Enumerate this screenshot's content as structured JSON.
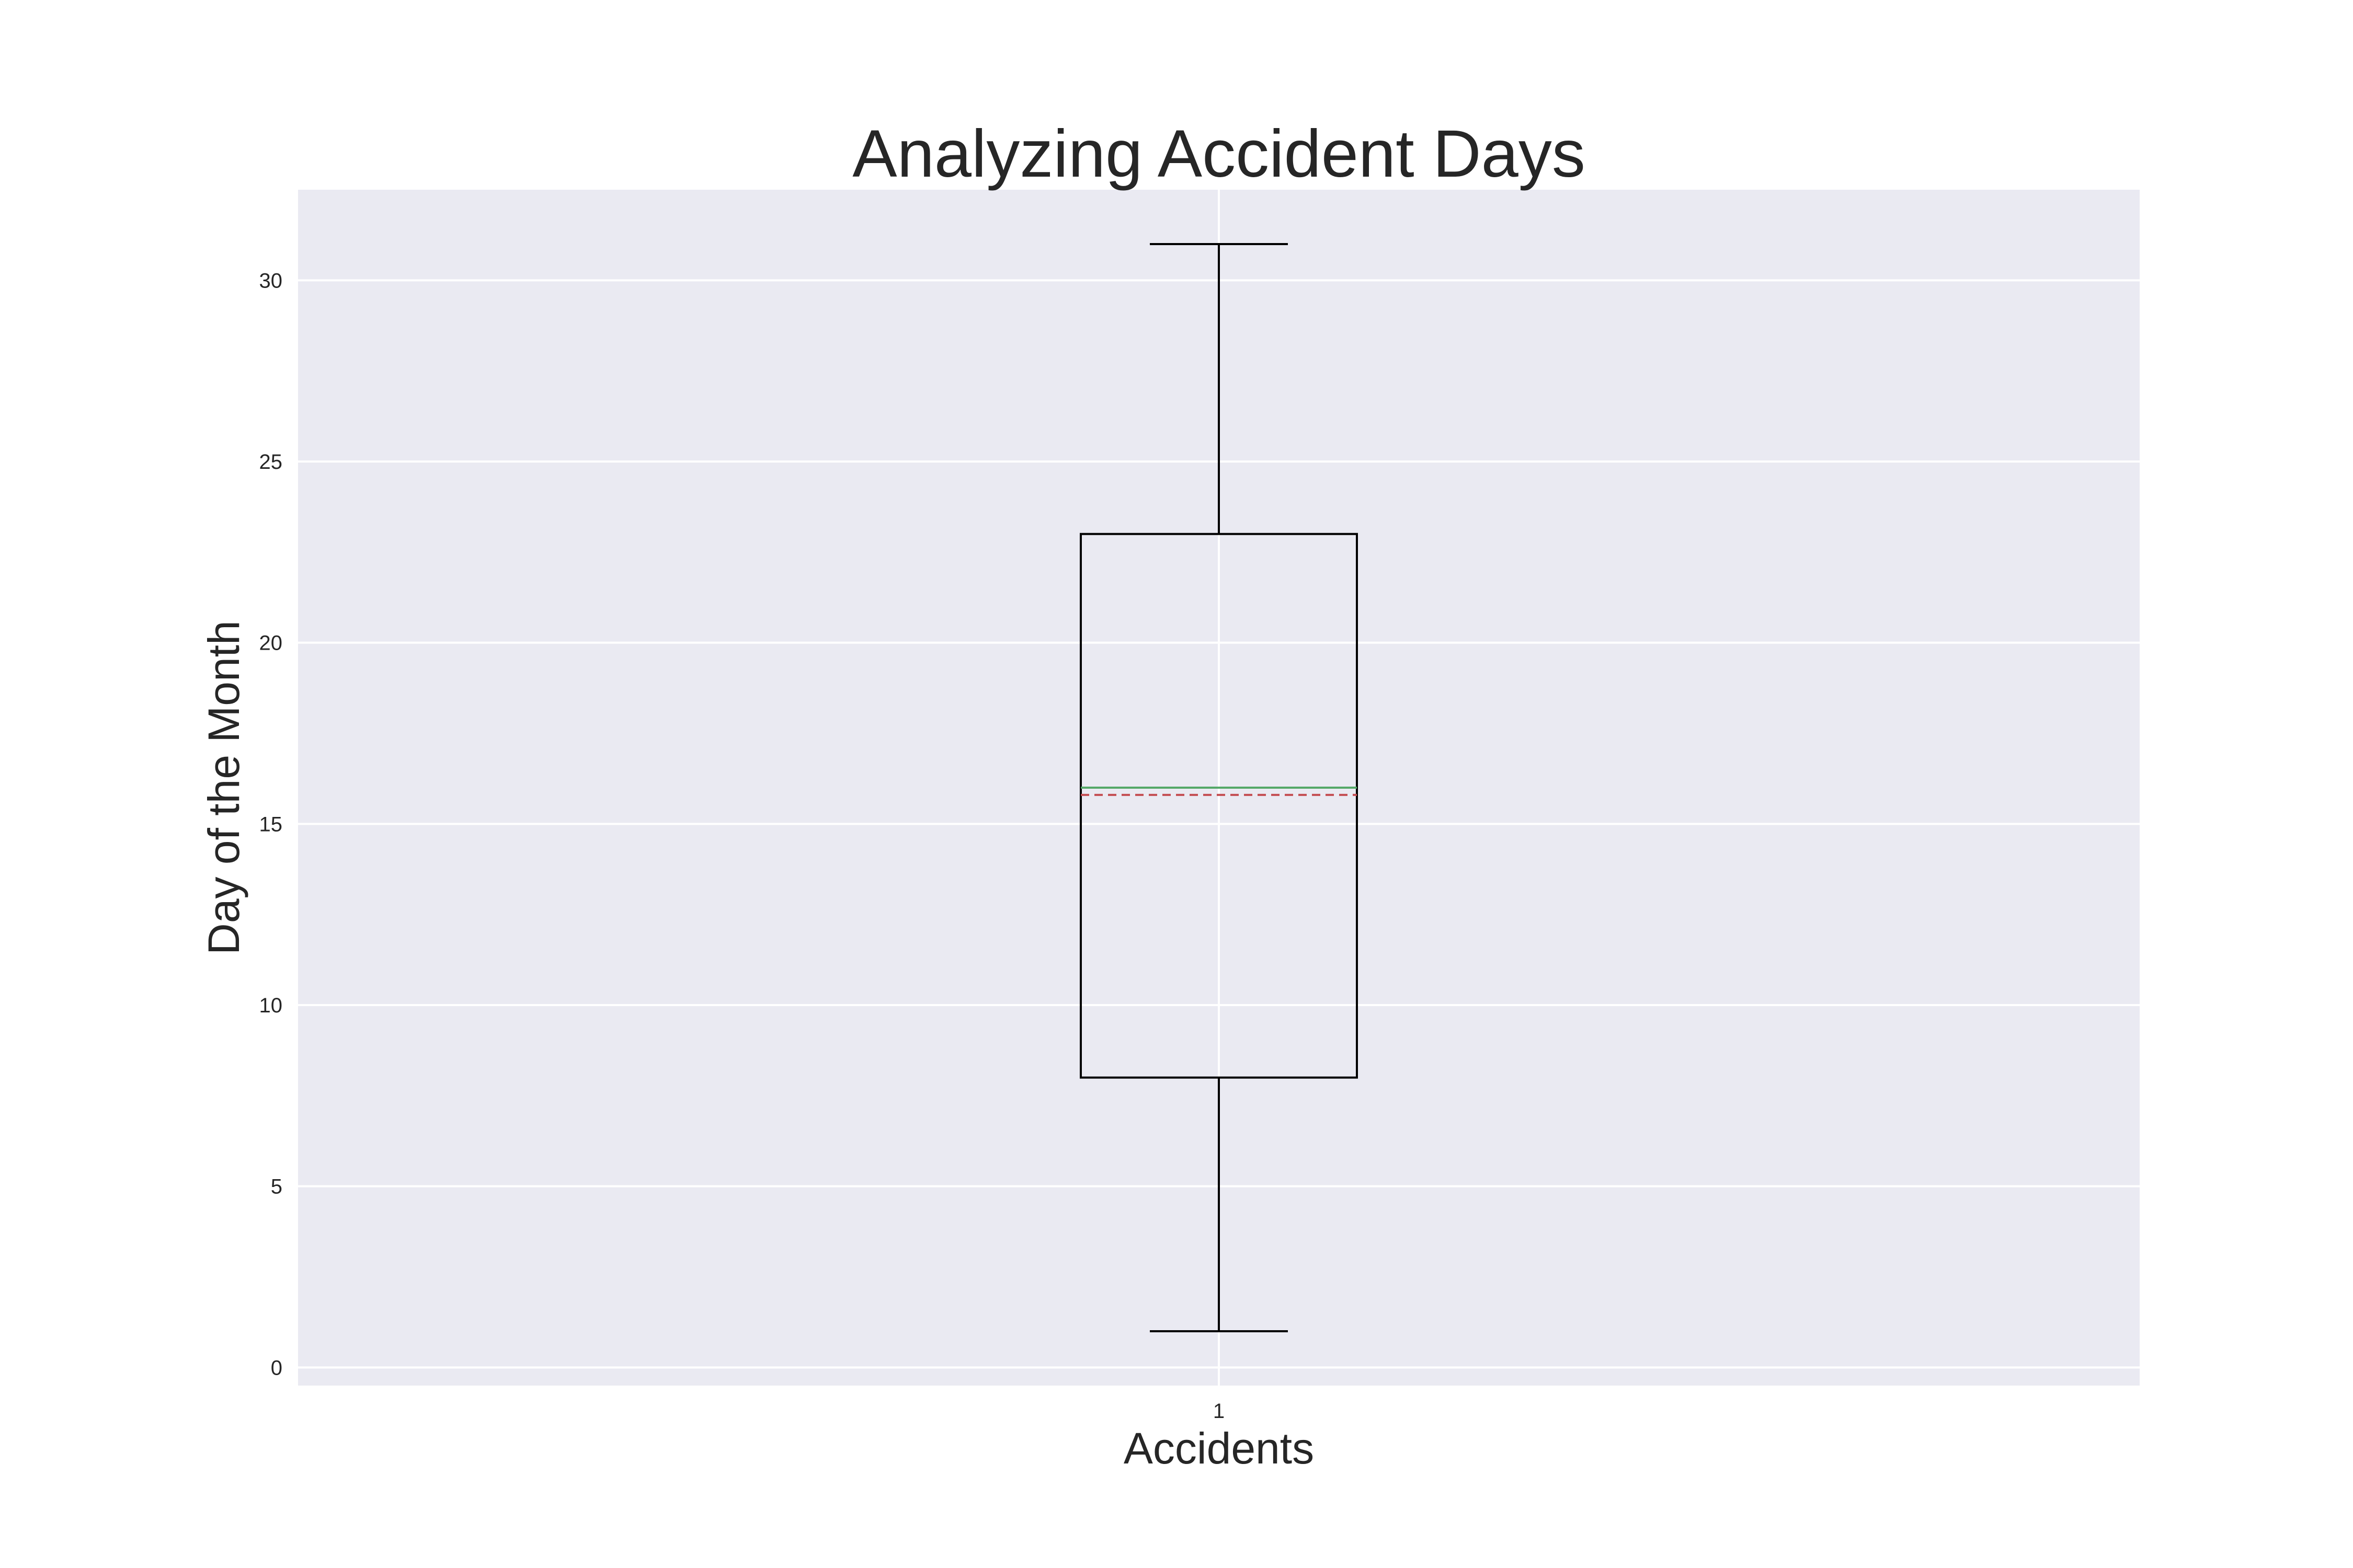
{
  "chart_data": {
    "type": "boxplot",
    "title": "Analyzing Accident Days",
    "xlabel": "Accidents",
    "ylabel": "Day of the Month",
    "categories": [
      "1"
    ],
    "ylim": [
      -0.5,
      32.5
    ],
    "yticks": [
      0,
      5,
      10,
      15,
      20,
      25,
      30
    ],
    "grid": true,
    "series": [
      {
        "whisker_low": 1,
        "q1": 8,
        "median": 16,
        "mean": 15.8,
        "q3": 23,
        "whisker_high": 31
      }
    ],
    "colors": {
      "background": "#eaeaf2",
      "grid": "#ffffff",
      "box": "#000000",
      "median": "#55a868",
      "mean": "#c44e52",
      "text": "#262626"
    }
  }
}
